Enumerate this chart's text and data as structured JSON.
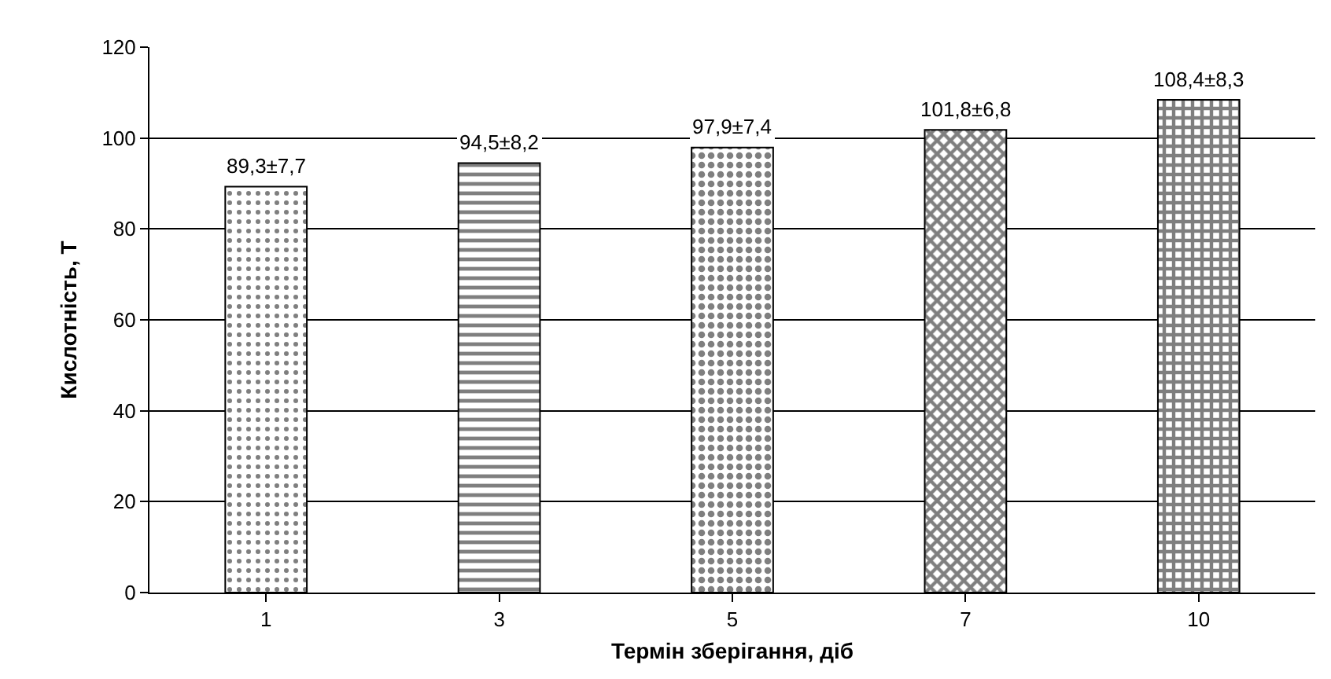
{
  "chart_data": {
    "type": "bar",
    "xlabel": "Термін зберігання, діб",
    "ylabel": "Кислотність, Т",
    "categories": [
      "1",
      "3",
      "5",
      "7",
      "10"
    ],
    "values": [
      89.3,
      94.5,
      97.9,
      101.8,
      108.4
    ],
    "value_labels": [
      "89,3±7,7",
      "94,5±8,2",
      "97,9±7,4",
      "101,8±6,8",
      "108,4±8,3"
    ],
    "ylim": [
      0,
      120
    ],
    "yticks": [
      0,
      20,
      40,
      60,
      80,
      100,
      120
    ],
    "grid": "y"
  }
}
